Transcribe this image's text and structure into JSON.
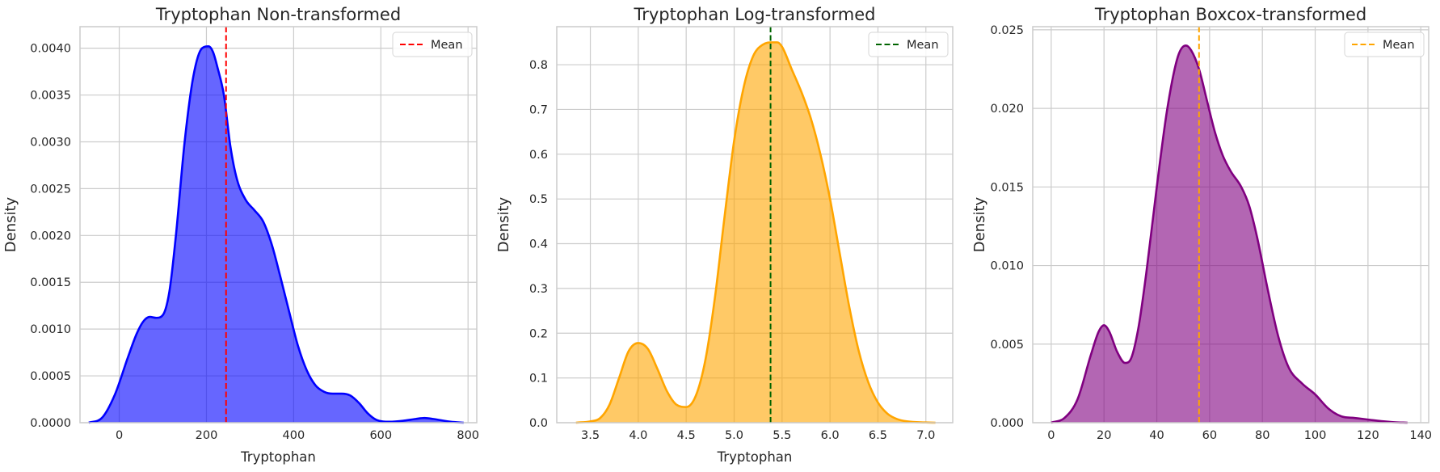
{
  "chart_data": [
    {
      "type": "area",
      "title": "Tryptophan Non-transformed",
      "xlabel": "Tryptophan",
      "ylabel": "Density",
      "xlim": [
        -90,
        820
      ],
      "ylim": [
        0,
        0.00423
      ],
      "xticks": [
        0,
        200,
        400,
        600,
        800
      ],
      "yticks": [
        0,
        0.0005,
        0.001,
        0.0015,
        0.002,
        0.0025,
        0.003,
        0.0035,
        0.004
      ],
      "xtick_labels": [
        "0",
        "200",
        "400",
        "600",
        "800"
      ],
      "ytick_labels": [
        "0.0000",
        "0.0005",
        "0.0010",
        "0.0015",
        "0.0020",
        "0.0025",
        "0.0030",
        "0.0035",
        "0.0040"
      ],
      "grid": true,
      "legend": "top-right",
      "fill_color": "#0000ff",
      "line_color": "#0000ff",
      "mean_color": "#ff0000",
      "mean": 245,
      "legend_label": "Mean",
      "series": [
        {
          "x": [
            -70,
            -40,
            -10,
            20,
            40,
            55,
            70,
            85,
            100,
            115,
            130,
            150,
            170,
            190,
            205,
            215,
            225,
            240,
            255,
            270,
            290,
            310,
            330,
            350,
            370,
            390,
            410,
            430,
            450,
            470,
            490,
            510,
            530,
            550,
            570,
            590,
            620,
            650,
            680,
            700,
            720,
            760,
            790
          ],
          "y": [
            0,
            5e-05,
            0.0003,
            0.0007,
            0.00095,
            0.00108,
            0.00113,
            0.00112,
            0.00115,
            0.0014,
            0.002,
            0.003,
            0.0037,
            0.004,
            0.00402,
            0.00396,
            0.0038,
            0.0035,
            0.00295,
            0.0026,
            0.00238,
            0.00227,
            0.00215,
            0.0019,
            0.00155,
            0.00118,
            0.00082,
            0.00056,
            0.0004,
            0.00033,
            0.00031,
            0.00031,
            0.00029,
            0.00021,
            0.0001,
            3e-05,
            1e-05,
            2e-05,
            4e-05,
            5e-05,
            4e-05,
            1e-05,
            0
          ]
        }
      ]
    },
    {
      "type": "area",
      "title": "Tryptophan Log-transformed",
      "xlabel": "Tryptophan",
      "ylabel": "Density",
      "xlim": [
        3.15,
        7.28
      ],
      "ylim": [
        0,
        0.885
      ],
      "xticks": [
        3.5,
        4.0,
        4.5,
        5.0,
        5.5,
        6.0,
        6.5,
        7.0
      ],
      "yticks": [
        0,
        0.1,
        0.2,
        0.3,
        0.4,
        0.5,
        0.6,
        0.7,
        0.8
      ],
      "xtick_labels": [
        "3.5",
        "4.0",
        "4.5",
        "5.0",
        "5.5",
        "6.0",
        "6.5",
        "7.0"
      ],
      "ytick_labels": [
        "0.0",
        "0.1",
        "0.2",
        "0.3",
        "0.4",
        "0.5",
        "0.6",
        "0.7",
        "0.8"
      ],
      "grid": true,
      "legend": "top-right",
      "fill_color": "#ffa500",
      "line_color": "#ffa500",
      "mean_color": "#006400",
      "mean": 5.38,
      "legend_label": "Mean",
      "series": [
        {
          "x": [
            3.35,
            3.5,
            3.6,
            3.7,
            3.8,
            3.9,
            4.0,
            4.1,
            4.2,
            4.3,
            4.4,
            4.5,
            4.6,
            4.7,
            4.8,
            4.9,
            5.0,
            5.1,
            5.2,
            5.3,
            5.4,
            5.45,
            5.5,
            5.6,
            5.7,
            5.8,
            5.9,
            6.0,
            6.1,
            6.2,
            6.3,
            6.4,
            6.5,
            6.6,
            6.7,
            6.8,
            7.0,
            7.1
          ],
          "y": [
            0,
            0.003,
            0.01,
            0.04,
            0.1,
            0.16,
            0.178,
            0.165,
            0.12,
            0.07,
            0.04,
            0.035,
            0.06,
            0.14,
            0.28,
            0.46,
            0.63,
            0.75,
            0.82,
            0.845,
            0.85,
            0.85,
            0.84,
            0.79,
            0.74,
            0.68,
            0.6,
            0.5,
            0.38,
            0.26,
            0.16,
            0.09,
            0.045,
            0.02,
            0.008,
            0.003,
            0.0005,
            0
          ]
        }
      ]
    },
    {
      "type": "area",
      "title": "Tryptophan Boxcox-transformed",
      "xlabel": "",
      "ylabel": "Density",
      "xlim": [
        -7,
        143
      ],
      "ylim": [
        0,
        0.0252
      ],
      "xticks": [
        0,
        20,
        40,
        60,
        80,
        100,
        120,
        140
      ],
      "yticks": [
        0,
        0.005,
        0.01,
        0.015,
        0.02,
        0.025
      ],
      "xtick_labels": [
        "0",
        "20",
        "40",
        "60",
        "80",
        "100",
        "120",
        "140"
      ],
      "ytick_labels": [
        "0.000",
        "0.005",
        "0.010",
        "0.015",
        "0.020",
        "0.025"
      ],
      "grid": true,
      "legend": "top-right",
      "fill_color": "#800080",
      "line_color": "#800080",
      "mean_color": "#ffa500",
      "mean": 56,
      "legend_label": "Mean",
      "series": [
        {
          "x": [
            0,
            5,
            10,
            15,
            18,
            20,
            22,
            25,
            28,
            30,
            33,
            36,
            40,
            44,
            48,
            51,
            53,
            56,
            59,
            62,
            65,
            68,
            72,
            75,
            78,
            82,
            86,
            90,
            95,
            100,
            105,
            110,
            115,
            120,
            125,
            130,
            135
          ],
          "y": [
            0,
            0.0003,
            0.0015,
            0.0043,
            0.0058,
            0.0062,
            0.0058,
            0.0045,
            0.0038,
            0.004,
            0.006,
            0.0095,
            0.015,
            0.02,
            0.0233,
            0.024,
            0.0237,
            0.0225,
            0.0205,
            0.0185,
            0.017,
            0.016,
            0.015,
            0.0138,
            0.0118,
            0.0085,
            0.0055,
            0.0035,
            0.0025,
            0.0018,
            0.0009,
            0.0004,
            0.0003,
            0.0002,
            0.0001,
            3e-05,
            0
          ]
        }
      ]
    }
  ]
}
